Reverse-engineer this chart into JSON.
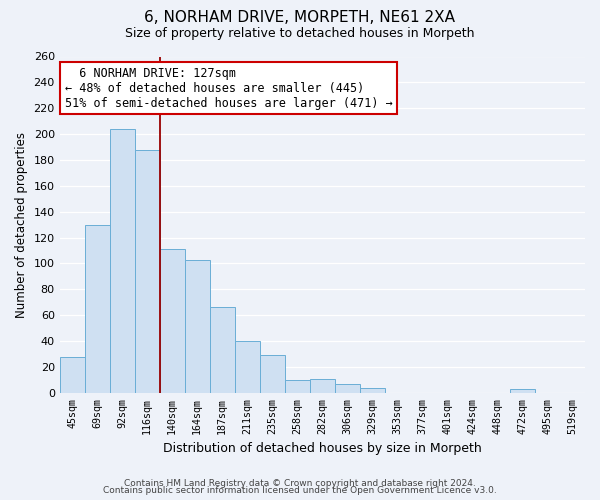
{
  "title": "6, NORHAM DRIVE, MORPETH, NE61 2XA",
  "subtitle": "Size of property relative to detached houses in Morpeth",
  "xlabel": "Distribution of detached houses by size in Morpeth",
  "ylabel": "Number of detached properties",
  "categories": [
    "45sqm",
    "69sqm",
    "92sqm",
    "116sqm",
    "140sqm",
    "164sqm",
    "187sqm",
    "211sqm",
    "235sqm",
    "258sqm",
    "282sqm",
    "306sqm",
    "329sqm",
    "353sqm",
    "377sqm",
    "401sqm",
    "424sqm",
    "448sqm",
    "472sqm",
    "495sqm",
    "519sqm"
  ],
  "values": [
    28,
    130,
    204,
    188,
    111,
    103,
    66,
    40,
    29,
    10,
    11,
    7,
    4,
    0,
    0,
    0,
    0,
    0,
    3,
    0,
    0
  ],
  "bar_color": "#cfe0f2",
  "bar_edge_color": "#6aaed6",
  "vline_color": "#990000",
  "annotation_title": "6 NORHAM DRIVE: 127sqm",
  "annotation_line1": "← 48% of detached houses are smaller (445)",
  "annotation_line2": "51% of semi-detached houses are larger (471) →",
  "annotation_box_color": "#ffffff",
  "annotation_box_edge": "#cc0000",
  "ylim": [
    0,
    260
  ],
  "yticks": [
    0,
    20,
    40,
    60,
    80,
    100,
    120,
    140,
    160,
    180,
    200,
    220,
    240,
    260
  ],
  "footnote1": "Contains HM Land Registry data © Crown copyright and database right 2024.",
  "footnote2": "Contains public sector information licensed under the Open Government Licence v3.0.",
  "bg_color": "#eef2f9",
  "grid_color": "#d0d8e8",
  "title_fontsize": 11,
  "subtitle_fontsize": 9
}
